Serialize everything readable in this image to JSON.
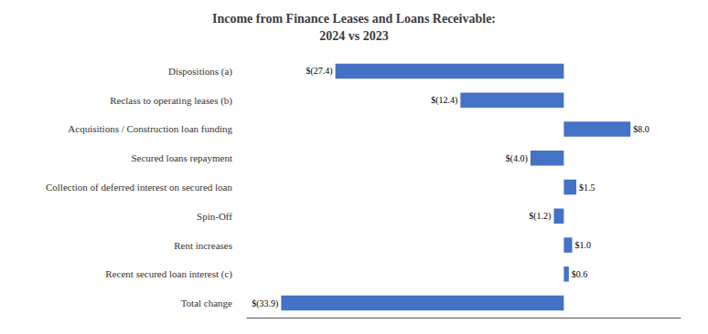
{
  "chart_data": {
    "type": "bar",
    "orientation": "horizontal",
    "title": "Income from Finance Leases and Loans Receivable:\n2024 vs 2023",
    "categories": [
      "Dispositions (a)",
      "Reclass to operating leases (b)",
      "Acquisitions / Construction loan funding",
      "Secured loans repayment",
      "Collection of deferred interest on secured loan",
      "Spin-Off",
      "Rent increases",
      "Recent secured loan interest (c)",
      "Total change"
    ],
    "values": [
      -27.4,
      -12.4,
      8.0,
      -4.0,
      1.5,
      -1.2,
      1.0,
      0.6,
      -33.9
    ],
    "value_labels": [
      "$(27.4)",
      "$(12.4)",
      "$8.0",
      "$(4.0)",
      "$1.5",
      "$(1.2)",
      "$1.0",
      "$0.6",
      "$(33.9)"
    ],
    "data_labels": true,
    "color": "#4472C4",
    "xlim": [
      -38,
      14
    ],
    "tick_labels": "y",
    "grid": false
  }
}
